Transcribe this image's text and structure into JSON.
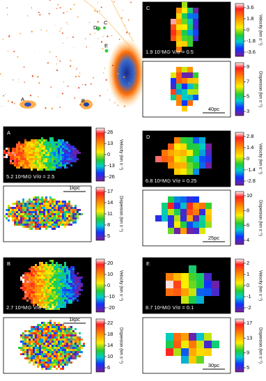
{
  "overview": {
    "labels": [
      "A",
      "B",
      "C",
      "D",
      "E"
    ]
  },
  "panels": [
    {
      "label": "A",
      "caption": "5.2 10⁸M⊙  V/σ = 2.5",
      "velocity_title": "Velocity (km s⁻¹)",
      "velocity_ticks": [
        26,
        13,
        0,
        -13,
        -26
      ],
      "dispersion_title": "Dispersion (km s⁻¹)",
      "dispersion_ticks": [
        17,
        14,
        11,
        8,
        5
      ],
      "scale": "1kpc"
    },
    {
      "label": "B",
      "caption": "2.7 10⁸M⊙  V/σ = 1.8",
      "velocity_title": "Velocity (km s⁻¹)",
      "velocity_ticks": [
        20,
        10,
        0,
        -10,
        -20
      ],
      "dispersion_title": "Dispersion (km s⁻¹)",
      "dispersion_ticks": [
        22,
        18,
        14,
        10,
        6
      ],
      "scale": "1kpc"
    },
    {
      "label": "C",
      "caption": "1.9 10⁷M⊙  V/σ = 0.5",
      "velocity_title": "Velocity (km s⁻¹)",
      "velocity_ticks": [
        3.6,
        1.8,
        0,
        -1.8,
        -3.6
      ],
      "dispersion_title": "Dispersion (km s⁻¹)",
      "dispersion_ticks": [
        9,
        7,
        5,
        3
      ],
      "scale": "40pc"
    },
    {
      "label": "D",
      "caption": "6.8 10⁶M⊙  V/σ = 0.25",
      "velocity_title": "Velocity (km s⁻¹)",
      "velocity_ticks": [
        2.8,
        1.4,
        0,
        -1.4,
        -2.8
      ],
      "dispersion_title": "Dispersion (km s⁻¹)",
      "dispersion_ticks": [
        10,
        8,
        6,
        4
      ],
      "scale": "25pc"
    },
    {
      "label": "E",
      "caption": "8.7 10⁶M⊙  V/σ = 0.1",
      "velocity_title": "Velocity (km s⁻¹)",
      "velocity_ticks": [
        2,
        1,
        0,
        -1,
        -2
      ],
      "dispersion_title": "Dispersion (km s⁻¹)",
      "dispersion_ticks": [
        17,
        13,
        9,
        5
      ],
      "scale": "30pc"
    }
  ]
}
